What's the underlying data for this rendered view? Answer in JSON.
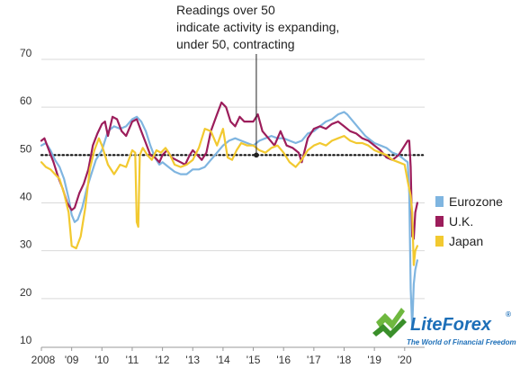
{
  "chart_data": {
    "type": "line",
    "title": "",
    "xlabel": "",
    "ylabel": "",
    "ylim": [
      10,
      70
    ],
    "xlim": [
      2008.0,
      2020.6
    ],
    "yticks": [
      10,
      20,
      30,
      40,
      50,
      60,
      70
    ],
    "xtick_labels": [
      {
        "x": 2008,
        "label": "2008"
      },
      {
        "x": 2009,
        "label": "'09"
      },
      {
        "x": 2010,
        "label": "'10"
      },
      {
        "x": 2011,
        "label": "'11"
      },
      {
        "x": 2012,
        "label": "'12"
      },
      {
        "x": 2013,
        "label": "'13"
      },
      {
        "x": 2014,
        "label": "'14"
      },
      {
        "x": 2015,
        "label": "'15"
      },
      {
        "x": 2016,
        "label": "'16"
      },
      {
        "x": 2017,
        "label": "'17"
      },
      {
        "x": 2018,
        "label": "'18"
      },
      {
        "x": 2019,
        "label": "'19"
      },
      {
        "x": 2020,
        "label": "'20"
      }
    ],
    "grid": "horizontal",
    "reference_line": {
      "y": 50,
      "style": "dotted"
    },
    "annotation": {
      "lines": [
        "Readings over 50",
        "indicate activity is expanding,",
        "under 50, contracting"
      ],
      "x": 2015.1,
      "y": 50
    },
    "legend_position": "right",
    "series": [
      {
        "name": "Eurozone",
        "color": "#7fb5e0",
        "x": [
          2008.0,
          2008.15,
          2008.3,
          2008.45,
          2008.6,
          2008.75,
          2008.9,
          2009.0,
          2009.1,
          2009.2,
          2009.35,
          2009.5,
          2009.65,
          2009.8,
          2010.0,
          2010.2,
          2010.4,
          2010.6,
          2010.8,
          2011.0,
          2011.15,
          2011.3,
          2011.45,
          2011.6,
          2011.75,
          2011.9,
          2012.0,
          2012.2,
          2012.4,
          2012.6,
          2012.8,
          2013.0,
          2013.2,
          2013.4,
          2013.6,
          2013.8,
          2014.0,
          2014.2,
          2014.4,
          2014.6,
          2014.8,
          2015.0,
          2015.2,
          2015.4,
          2015.6,
          2015.8,
          2016.0,
          2016.2,
          2016.4,
          2016.6,
          2016.8,
          2017.0,
          2017.2,
          2017.4,
          2017.6,
          2017.8,
          2018.0,
          2018.1,
          2018.3,
          2018.5,
          2018.7,
          2018.9,
          2019.0,
          2019.2,
          2019.4,
          2019.6,
          2019.8,
          2020.0,
          2020.1,
          2020.15,
          2020.2,
          2020.25,
          2020.3,
          2020.35,
          2020.42
        ],
        "values": [
          52,
          52.5,
          51,
          49,
          47.5,
          45,
          41,
          37.5,
          36,
          36.5,
          39,
          43,
          46,
          49,
          51,
          55,
          56,
          55.5,
          56,
          57.5,
          58,
          57,
          55,
          52,
          49.5,
          48,
          48.5,
          47.5,
          46.5,
          46,
          46,
          47,
          47,
          47.5,
          49,
          50.5,
          52,
          53,
          53.5,
          53,
          52.5,
          52,
          53,
          53.5,
          54,
          53.5,
          53.5,
          53,
          52.5,
          53,
          54.5,
          55,
          56,
          57,
          57.5,
          58.5,
          59,
          58.5,
          57,
          55.5,
          54,
          53,
          52.5,
          52,
          51.5,
          50.5,
          50,
          49,
          48.5,
          42,
          22,
          14,
          23,
          26,
          28
        ]
      },
      {
        "name": "U.K.",
        "color": "#9c1d5b",
        "x": [
          2008.0,
          2008.1,
          2008.25,
          2008.4,
          2008.55,
          2008.7,
          2008.85,
          2009.0,
          2009.1,
          2009.25,
          2009.4,
          2009.55,
          2009.7,
          2009.85,
          2010.0,
          2010.1,
          2010.2,
          2010.35,
          2010.5,
          2010.65,
          2010.8,
          2011.0,
          2011.15,
          2011.3,
          2011.45,
          2011.6,
          2011.75,
          2011.9,
          2012.0,
          2012.15,
          2012.3,
          2012.45,
          2012.6,
          2012.75,
          2012.9,
          2013.0,
          2013.15,
          2013.3,
          2013.45,
          2013.6,
          2013.8,
          2013.95,
          2014.1,
          2014.25,
          2014.4,
          2014.55,
          2014.7,
          2014.85,
          2015.0,
          2015.15,
          2015.3,
          2015.5,
          2015.7,
          2015.9,
          2016.1,
          2016.3,
          2016.5,
          2016.6,
          2016.8,
          2017.0,
          2017.2,
          2017.4,
          2017.6,
          2017.8,
          2018.0,
          2018.2,
          2018.4,
          2018.6,
          2018.8,
          2019.0,
          2019.2,
          2019.4,
          2019.6,
          2019.8,
          2020.0,
          2020.1,
          2020.15,
          2020.2,
          2020.25,
          2020.3,
          2020.35,
          2020.42
        ],
        "values": [
          53,
          53.5,
          51,
          48.5,
          45.5,
          43,
          40,
          38.5,
          39,
          42,
          44,
          47,
          52,
          54.5,
          56.5,
          57,
          54,
          58,
          57.5,
          55,
          54,
          57,
          57.5,
          55,
          52.5,
          50,
          49.5,
          48.5,
          50,
          51,
          49.5,
          49,
          48.5,
          48,
          50,
          51,
          50,
          49,
          50.5,
          55,
          58.5,
          61,
          60,
          57,
          56,
          58,
          57,
          57,
          57,
          58.5,
          55,
          53.5,
          52,
          55,
          52,
          51.5,
          50.5,
          48.5,
          53.5,
          55.5,
          56,
          55.5,
          56.5,
          57,
          56,
          55,
          54.5,
          53.5,
          53,
          52,
          51,
          49.5,
          49,
          50,
          52,
          53,
          53,
          47.5,
          33,
          32.5,
          38,
          40
        ]
      },
      {
        "name": "Japan",
        "color": "#f2c930",
        "x": [
          2008.0,
          2008.15,
          2008.3,
          2008.45,
          2008.6,
          2008.75,
          2008.9,
          2009.0,
          2009.15,
          2009.3,
          2009.45,
          2009.6,
          2009.75,
          2009.9,
          2010.0,
          2010.2,
          2010.4,
          2010.6,
          2010.8,
          2011.0,
          2011.1,
          2011.15,
          2011.2,
          2011.25,
          2011.35,
          2011.5,
          2011.65,
          2011.8,
          2011.95,
          2012.1,
          2012.25,
          2012.4,
          2012.6,
          2012.8,
          2013.0,
          2013.2,
          2013.4,
          2013.6,
          2013.8,
          2014.0,
          2014.15,
          2014.3,
          2014.45,
          2014.6,
          2014.8,
          2015.0,
          2015.2,
          2015.4,
          2015.6,
          2015.8,
          2016.0,
          2016.2,
          2016.4,
          2016.6,
          2016.8,
          2017.0,
          2017.2,
          2017.4,
          2017.6,
          2017.8,
          2018.0,
          2018.2,
          2018.4,
          2018.6,
          2018.8,
          2019.0,
          2019.2,
          2019.4,
          2019.6,
          2019.8,
          2020.0,
          2020.1,
          2020.2,
          2020.25,
          2020.3,
          2020.35,
          2020.42
        ],
        "values": [
          48.5,
          47.5,
          47,
          46,
          45,
          42,
          38,
          31,
          30.5,
          33,
          39,
          47,
          51,
          53.5,
          52,
          48,
          46,
          48,
          47.5,
          51,
          50.5,
          36,
          35,
          50,
          51.5,
          50,
          49,
          51,
          50.5,
          51.5,
          50,
          48,
          47.5,
          48,
          49,
          51.5,
          55.5,
          55,
          52,
          55.5,
          49.5,
          49,
          51,
          52.5,
          52,
          52,
          51,
          50.5,
          51.5,
          52,
          50.5,
          48.5,
          47.5,
          49,
          51,
          52,
          52.5,
          52,
          53,
          53.5,
          54,
          53,
          52.5,
          52.5,
          52,
          51,
          50.5,
          50,
          49,
          48.5,
          48,
          44.5,
          41.5,
          38,
          27,
          30,
          31
        ]
      }
    ]
  },
  "watermark": {
    "name": "LiteForex",
    "tagline": "The World of Financial Freedom",
    "registered": "®"
  }
}
